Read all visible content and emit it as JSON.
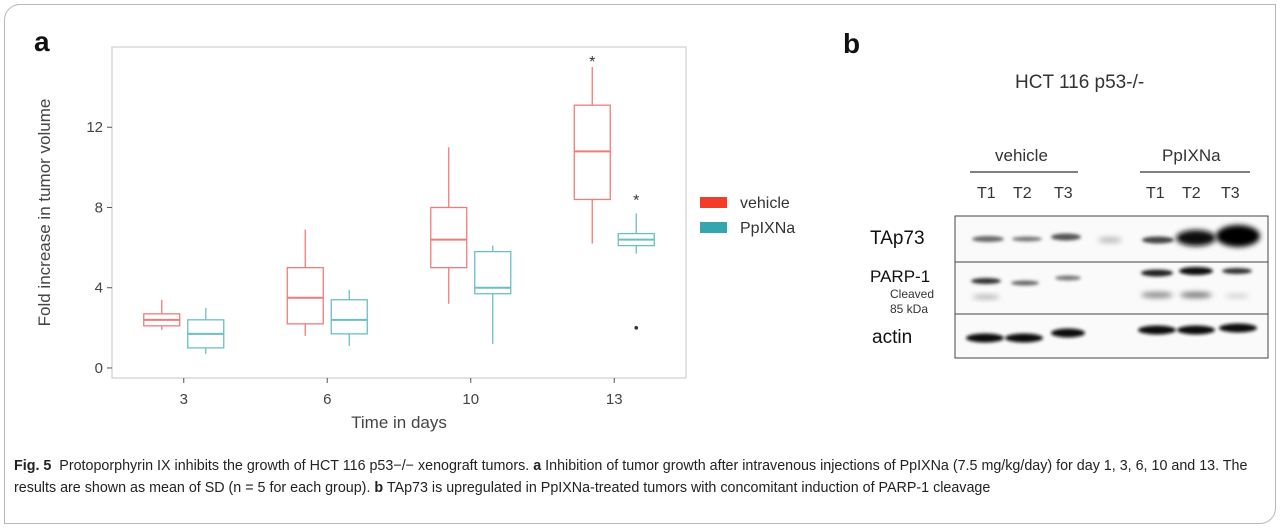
{
  "panel_a": {
    "letter": "a",
    "chart_data": {
      "type": "box",
      "xlabel": "Time in days",
      "ylabel": "Fold increase in tumor volume",
      "categories": [
        "3",
        "6",
        "10",
        "13"
      ],
      "y_ticks": [
        0,
        4,
        8,
        12
      ],
      "ylim": [
        -0.5,
        16
      ],
      "grid": false,
      "legend_position": "right",
      "series": [
        {
          "name": "vehicle",
          "color": "#f07b7b",
          "legend_color": "#f23d2b",
          "boxes": [
            {
              "min": 1.9,
              "q1": 2.1,
              "median": 2.4,
              "q3": 2.7,
              "max": 3.4
            },
            {
              "min": 1.6,
              "q1": 2.2,
              "median": 3.5,
              "q3": 5.0,
              "max": 6.9
            },
            {
              "min": 3.2,
              "q1": 5.0,
              "median": 6.4,
              "q3": 8.0,
              "max": 11.0
            },
            {
              "min": 6.2,
              "q1": 8.4,
              "median": 10.8,
              "q3": 13.1,
              "max": 15.0
            }
          ]
        },
        {
          "name": "PpIXNa",
          "color": "#6bbfc4",
          "legend_color": "#35a6ad",
          "boxes": [
            {
              "min": 0.7,
              "q1": 1.0,
              "median": 1.7,
              "q3": 2.4,
              "max": 3.0
            },
            {
              "min": 1.1,
              "q1": 1.7,
              "median": 2.4,
              "q3": 3.4,
              "max": 3.9
            },
            {
              "min": 1.2,
              "q1": 3.7,
              "median": 4.0,
              "q3": 5.8,
              "max": 6.1
            },
            {
              "min": 5.7,
              "q1": 6.1,
              "median": 6.4,
              "q3": 6.7,
              "max": 7.7,
              "outliers": [
                2.0
              ]
            }
          ]
        }
      ],
      "annotations": [
        {
          "text": "*",
          "category": "13",
          "series": "vehicle",
          "y": 15.4
        },
        {
          "text": "*",
          "category": "13",
          "series": "PpIXNa",
          "y": 8.5
        }
      ]
    }
  },
  "panel_b": {
    "letter": "b",
    "title": "HCT 116 p53-/-",
    "groups": [
      {
        "label": "vehicle",
        "lanes": [
          "T1",
          "T2",
          "T3"
        ]
      },
      {
        "label": "PpIXNa",
        "lanes": [
          "T1",
          "T2",
          "T3"
        ]
      }
    ],
    "rows": [
      {
        "label": "TAp73"
      },
      {
        "label": "PARP-1",
        "sublabel_1": "Cleaved",
        "sublabel_2": "85 kDa"
      },
      {
        "label": "actin"
      }
    ]
  },
  "caption": {
    "fig_label": "Fig. 5",
    "title": "Protoporphyrin IX inhibits the growth of HCT 116 p53−/− xenograft tumors.",
    "a_label": "a",
    "a_text": "Inhibition of tumor growth after intravenous injections of PpIXNa (7.5 mg/kg/day) for day 1, 3, 6, 10 and 13. The results are shown as mean of SD (n = 5 for each group).",
    "b_label": "b",
    "b_text": "TAp73 is upregulated in PpIXNa-treated tumors with concomitant induction of PARP-1 cleavage"
  }
}
